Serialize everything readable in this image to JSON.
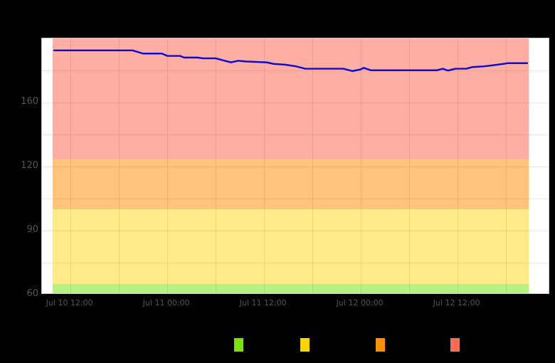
{
  "chart_data": {
    "type": "line",
    "title": "",
    "x_axis": {
      "start": "Jul 10 08:30",
      "end": "Jul 12 23:30",
      "labeled_ticks": [
        "Jul 10 12:00",
        "Jul 11 00:00",
        "Jul 11 12:00",
        "Jul 12 00:00",
        "Jul 12 12:00"
      ],
      "gridline_ticks": [
        "Jul 10 12:00",
        "Jul 10 18:00",
        "Jul 11 00:00",
        "Jul 11 06:00",
        "Jul 11 12:00",
        "Jul 11 18:00",
        "Jul 12 00:00",
        "Jul 12 06:00",
        "Jul 12 12:00",
        "Jul 12 18:00"
      ]
    },
    "y_axis": {
      "range": [
        60,
        200
      ],
      "tick_values": [
        60,
        75,
        90,
        105,
        120,
        140,
        160,
        180,
        200
      ],
      "labeled_ticks": [
        60,
        90,
        120,
        160
      ],
      "scale": "non-uniform ticks, evenly spaced gridlines"
    },
    "band_window": {
      "start": "Jul 10 09:50",
      "end": "Jul 12 20:50"
    },
    "bands": [
      {
        "name": "green-zone",
        "from": 60,
        "to": 65,
        "color": "rgba(110,229,0,0.5)"
      },
      {
        "name": "yellow-zone",
        "from": 65,
        "to": 100,
        "color": "rgba(255,213,0,0.47)"
      },
      {
        "name": "orange-zone",
        "from": 100,
        "to": 125,
        "color": "rgba(255,140,0,0.5)"
      },
      {
        "name": "red-zone",
        "from": 125,
        "to": 200,
        "color": "rgba(255,93,73,0.5)"
      }
    ],
    "series": [
      {
        "name": "value",
        "color": "#0c0cd0",
        "line_width": 2.5,
        "points": [
          [
            "Jul 10 10:00",
            192.5
          ],
          [
            "Jul 10 19:45",
            192.5
          ],
          [
            "Jul 10 21:05",
            190.5
          ],
          [
            "Jul 10 23:25",
            190.5
          ],
          [
            "Jul 11 00:05",
            189.0
          ],
          [
            "Jul 11 01:40",
            189.0
          ],
          [
            "Jul 11 02:10",
            188.0
          ],
          [
            "Jul 11 03:50",
            188.0
          ],
          [
            "Jul 11 04:30",
            187.5
          ],
          [
            "Jul 11 06:05",
            187.5
          ],
          [
            "Jul 11 06:50",
            186.5
          ],
          [
            "Jul 11 08:00",
            185.0
          ],
          [
            "Jul 11 08:55",
            186.0
          ],
          [
            "Jul 11 09:50",
            185.5
          ],
          [
            "Jul 11 12:25",
            185.0
          ],
          [
            "Jul 11 13:20",
            184.0
          ],
          [
            "Jul 11 14:45",
            183.5
          ],
          [
            "Jul 11 16:05",
            182.5
          ],
          [
            "Jul 11 17:15",
            181.0
          ],
          [
            "Jul 11 22:00",
            181.0
          ],
          [
            "Jul 11 23:05",
            179.5
          ],
          [
            "Jul 12 00:05",
            180.5
          ],
          [
            "Jul 12 00:30",
            181.5
          ],
          [
            "Jul 12 01:25",
            180.0
          ],
          [
            "Jul 12 09:35",
            180.0
          ],
          [
            "Jul 12 10:20",
            181.0
          ],
          [
            "Jul 12 11:00",
            179.8
          ],
          [
            "Jul 12 11:55",
            181.0
          ],
          [
            "Jul 12 13:15",
            181.0
          ],
          [
            "Jul 12 14:00",
            182.0
          ],
          [
            "Jul 12 15:30",
            182.5
          ],
          [
            "Jul 12 17:10",
            183.5
          ],
          [
            "Jul 12 18:30",
            184.5
          ],
          [
            "Jul 12 20:05",
            184.5
          ],
          [
            "Jul 12 20:50",
            184.5
          ]
        ]
      }
    ],
    "legend": {
      "position": "bottom",
      "items": [
        {
          "label": "",
          "color": "#7ce200"
        },
        {
          "label": "",
          "color": "#ffd500"
        },
        {
          "label": "",
          "color": "#ff8e00"
        },
        {
          "label": "",
          "color": "#ff6a55"
        }
      ]
    }
  },
  "colors": {
    "background": "#000000",
    "plot_background": "#ffffff",
    "plot_border": "#c9c9c9",
    "gridline": "rgba(0,0,0,0.085)",
    "tick_label": "#545454"
  }
}
